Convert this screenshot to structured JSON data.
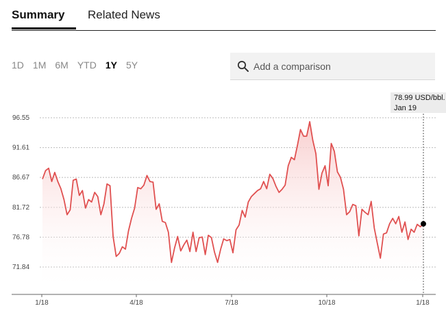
{
  "tabs": {
    "summary": "Summary",
    "related_news": "Related News"
  },
  "ranges": [
    {
      "label": "1D",
      "active": false
    },
    {
      "label": "1M",
      "active": false
    },
    {
      "label": "6M",
      "active": false
    },
    {
      "label": "YTD",
      "active": false
    },
    {
      "label": "1Y",
      "active": true
    },
    {
      "label": "5Y",
      "active": false
    }
  ],
  "comparison": {
    "placeholder": "Add a comparison",
    "icon": "search-icon"
  },
  "tooltip": {
    "price": "78.99 USD/bbl.",
    "date": "Jan 19"
  },
  "colors": {
    "line": "#e05050",
    "fill_top": "#f8c8c8",
    "grid": "#bbbbbb",
    "marker": "#000000"
  },
  "chart_data": {
    "type": "area",
    "title": "",
    "xlabel": "",
    "ylabel": "",
    "y_ticks": [
      "96.55",
      "91.61",
      "86.67",
      "81.72",
      "76.78",
      "71.84"
    ],
    "x_ticks": [
      "1/18",
      "4/18",
      "7/18",
      "10/18",
      "1/18"
    ],
    "ylim": [
      70.0,
      98.5
    ],
    "grid": true,
    "series": [
      {
        "values": [
          86.4,
          87.8,
          88.2,
          86.0,
          87.5,
          86.0,
          84.8,
          83.0,
          80.5,
          81.3,
          86.2,
          86.4,
          83.7,
          84.5,
          81.6,
          83.0,
          82.6,
          84.2,
          83.5,
          80.5,
          82.3,
          85.6,
          85.3,
          76.9,
          73.6,
          74.1,
          75.2,
          74.8,
          77.8,
          79.9,
          81.6,
          85.0,
          84.8,
          85.4,
          87.0,
          86.0,
          85.9,
          81.4,
          82.3,
          79.4,
          79.2,
          77.6,
          72.6,
          75.0,
          76.9,
          74.5,
          75.5,
          76.3,
          74.4,
          77.6,
          74.4,
          76.7,
          76.8,
          73.9,
          77.1,
          76.7,
          74.3,
          72.6,
          74.8,
          76.5,
          76.2,
          76.4,
          74.2,
          78.0,
          78.8,
          81.2,
          80.1,
          82.6,
          83.5,
          84.0,
          84.5,
          84.8,
          86.0,
          84.8,
          87.2,
          86.5,
          85.2,
          84.2,
          84.7,
          85.4,
          88.6,
          90.0,
          89.6,
          92.0,
          94.6,
          93.5,
          93.5,
          95.9,
          92.8,
          90.6,
          84.7,
          87.4,
          88.6,
          85.3,
          92.3,
          91.0,
          87.6,
          86.7,
          84.7,
          80.5,
          81.0,
          82.2,
          82.0,
          77.0,
          81.4,
          80.9,
          80.5,
          82.7,
          78.3,
          75.8,
          73.3,
          77.3,
          77.5,
          79.0,
          79.9,
          79.0,
          80.2,
          77.6,
          79.3,
          76.4,
          78.1,
          77.6,
          78.9,
          78.5,
          78.99
        ]
      }
    ],
    "last_point": {
      "x": "Jan 19",
      "y": 78.99
    }
  }
}
